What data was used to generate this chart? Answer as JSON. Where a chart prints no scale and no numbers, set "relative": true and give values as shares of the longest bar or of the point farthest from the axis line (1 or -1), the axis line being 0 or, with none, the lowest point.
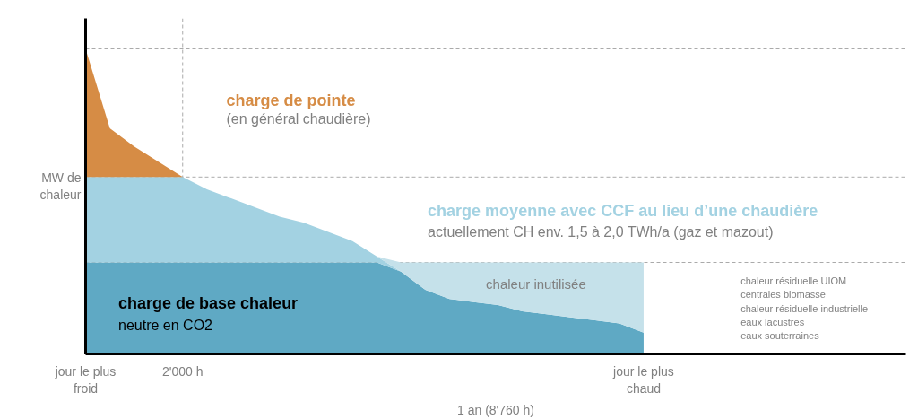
{
  "chart_data": {
    "type": "area",
    "stacked": true,
    "relative": true,
    "legend": false,
    "grid": false,
    "ylabel": "MW de\nchaleur",
    "xlabel": "1 an (8'760 h)",
    "categories": [
      "jour le plus\nfroid",
      null,
      null,
      null,
      "2'000 h",
      null,
      null,
      null,
      null,
      null,
      null,
      null,
      null,
      null,
      null,
      null,
      null,
      null,
      null,
      null,
      null,
      null,
      null,
      "jour le plus\nchaud"
    ],
    "series": [
      {
        "name": "charge de base chaleur",
        "color": "#5fa9c4",
        "values": [
          0.3,
          0.3,
          0.3,
          0.3,
          0.3,
          0.3,
          0.3,
          0.3,
          0.3,
          0.3,
          0.3,
          0.3,
          0.3,
          0.27,
          0.21,
          0.18,
          0.17,
          0.16,
          0.14,
          0.13,
          0.12,
          0.11,
          0.1,
          0.07
        ]
      },
      {
        "name": "charge moyenne avec CCF au lieu d’une chaudière",
        "color": "#a3d2e2",
        "values": [
          0.28,
          0.28,
          0.28,
          0.28,
          0.28,
          0.24,
          0.21,
          0.18,
          0.15,
          0.13,
          0.1,
          0.07,
          0.02,
          0,
          null,
          null,
          null,
          null,
          null,
          null,
          null,
          null,
          null,
          null
        ]
      },
      {
        "name": "charge de pointe",
        "color": "#d68c45",
        "values": [
          0.42,
          0.16,
          0.1,
          0.05,
          0,
          null,
          null,
          null,
          null,
          null,
          null,
          null,
          null,
          null,
          null,
          null,
          null,
          null,
          null,
          null,
          null,
          null,
          null,
          null
        ]
      },
      {
        "name": "chaleur inutilisée",
        "color": "#c5e1ea",
        "values": [
          null,
          null,
          null,
          null,
          null,
          null,
          null,
          null,
          null,
          null,
          null,
          null,
          0,
          0.03,
          0.09,
          0.12,
          0.13,
          0.14,
          0.16,
          0.17,
          0.18,
          0.19,
          0.2,
          0.23
        ]
      }
    ],
    "ref_lines": [
      {
        "axis": "y",
        "value": 1.0,
        "color": "#aaaaaa",
        "line_style": "dashed"
      },
      {
        "axis": "y",
        "value": 0.58,
        "color": "#aaaaaa",
        "line_style": "dashed"
      },
      {
        "axis": "y",
        "value": 0.3,
        "color": "#aaaaaa",
        "line_style": "dashed"
      },
      {
        "axis": "x",
        "value": "2'000 h",
        "color": "#aaaaaa",
        "line_style": "dashed"
      }
    ],
    "annotations": [
      "(en général chaudière)",
      "actuellement CH env. 1,5 à 2,0 TWh/a (gaz et mazout)",
      "neutre en CO2",
      "chaleur résiduelle UIOM",
      "centrales biomasse",
      "chaleur résiduelle industrielle",
      "eaux lacustres",
      "eaux souterraines"
    ]
  }
}
